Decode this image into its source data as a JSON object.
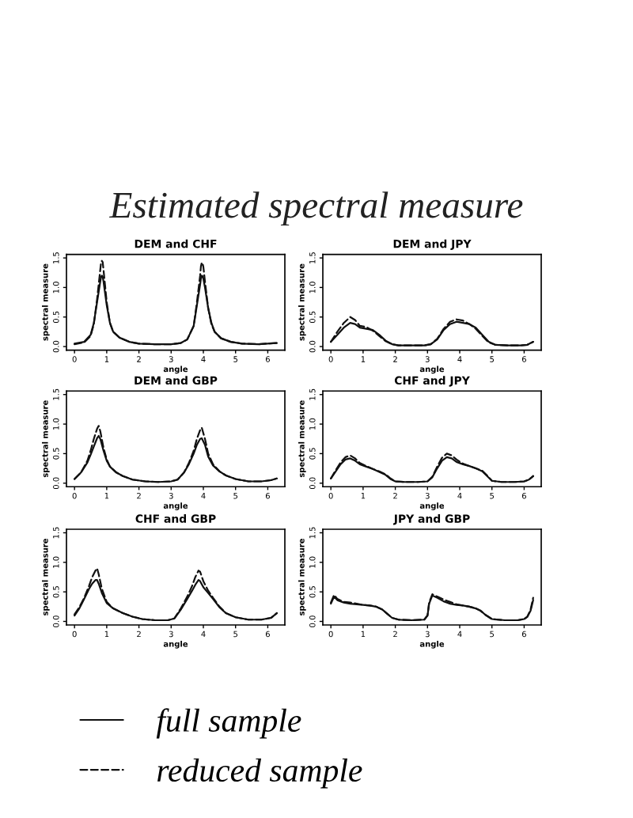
{
  "chart_data": [
    {
      "type": "line",
      "title": "DEM and CHF",
      "xlabel": "angle",
      "ylabel": "spectral measure",
      "annotations": [
        "Estimated spectral measure"
      ],
      "xlim": [
        -0.25,
        6.53
      ],
      "ylim": [
        -0.06,
        1.56
      ],
      "xticks": [
        0,
        1,
        2,
        3,
        4,
        5,
        6
      ],
      "yticks": [
        {
          "value": 0,
          "label": "0.0"
        },
        {
          "value": 0.5,
          "label": "0.5"
        },
        {
          "value": 1,
          "label": "1.0"
        },
        {
          "value": 1.5,
          "label": "1.5"
        }
      ],
      "series": [
        {
          "color": "#111111",
          "line_style": "solid",
          "x": [
            0,
            0.3,
            0.5,
            0.6,
            0.7,
            0.8,
            0.825,
            0.85,
            0.875,
            0.9,
            1.0,
            1.1,
            1.2,
            1.4,
            1.7,
            2.0,
            2.5,
            3.0,
            3.3,
            3.5,
            3.7,
            3.8,
            3.9,
            3.925,
            3.95,
            3.975,
            4.0,
            4.05,
            4.15,
            4.25,
            4.35,
            4.55,
            4.85,
            5.2,
            5.7,
            6.28
          ],
          "values": [
            0.05,
            0.08,
            0.2,
            0.4,
            0.75,
            1.1,
            1.18,
            1.2,
            1.18,
            1.1,
            0.7,
            0.4,
            0.25,
            0.15,
            0.08,
            0.05,
            0.04,
            0.04,
            0.06,
            0.12,
            0.35,
            0.7,
            1.05,
            1.15,
            1.2,
            1.19,
            1.15,
            1.0,
            0.65,
            0.4,
            0.25,
            0.14,
            0.08,
            0.05,
            0.04,
            0.06
          ]
        },
        {
          "color": "#111111",
          "line_style": "dashed",
          "x": [
            0,
            0.3,
            0.5,
            0.6,
            0.7,
            0.8,
            0.825,
            0.85,
            0.875,
            0.9,
            1.0,
            1.1,
            1.2,
            1.4,
            1.7,
            2.0,
            2.5,
            3.0,
            3.3,
            3.5,
            3.7,
            3.8,
            3.9,
            3.925,
            3.95,
            3.975,
            4.0,
            4.05,
            4.15,
            4.25,
            4.35,
            4.55,
            4.85,
            5.2,
            5.7,
            6.28
          ],
          "values": [
            0.04,
            0.07,
            0.18,
            0.38,
            0.8,
            1.3,
            1.43,
            1.45,
            1.43,
            1.3,
            0.75,
            0.4,
            0.25,
            0.15,
            0.08,
            0.05,
            0.04,
            0.04,
            0.06,
            0.12,
            0.35,
            0.75,
            1.2,
            1.36,
            1.42,
            1.41,
            1.35,
            1.1,
            0.65,
            0.38,
            0.25,
            0.14,
            0.08,
            0.05,
            0.04,
            0.06
          ]
        }
      ]
    },
    {
      "type": "line",
      "title": "DEM and JPY",
      "xlabel": "angle",
      "ylabel": "spectral measure",
      "xlim": [
        -0.25,
        6.53
      ],
      "ylim": [
        -0.06,
        1.56
      ],
      "xticks": [
        0,
        1,
        2,
        3,
        4,
        5,
        6
      ],
      "yticks": [
        {
          "value": 0,
          "label": "0.0"
        },
        {
          "value": 0.5,
          "label": "0.5"
        },
        {
          "value": 1,
          "label": "1.0"
        },
        {
          "value": 1.5,
          "label": "1.5"
        }
      ],
      "series": [
        {
          "color": "#111111",
          "line_style": "solid",
          "x": [
            0,
            0.2,
            0.4,
            0.6,
            0.75,
            0.9,
            1.1,
            1.3,
            1.5,
            1.7,
            1.9,
            2.1,
            2.5,
            2.9,
            3.1,
            3.3,
            3.5,
            3.7,
            3.9,
            4.1,
            4.3,
            4.5,
            4.7,
            4.9,
            5.1,
            5.5,
            5.9,
            6.1,
            6.28
          ],
          "values": [
            0.08,
            0.2,
            0.32,
            0.4,
            0.38,
            0.32,
            0.3,
            0.28,
            0.2,
            0.1,
            0.04,
            0.02,
            0.02,
            0.02,
            0.04,
            0.12,
            0.28,
            0.38,
            0.42,
            0.4,
            0.38,
            0.32,
            0.2,
            0.08,
            0.03,
            0.02,
            0.02,
            0.03,
            0.08
          ]
        },
        {
          "color": "#111111",
          "line_style": "dashed",
          "x": [
            0,
            0.2,
            0.4,
            0.6,
            0.75,
            0.9,
            1.1,
            1.3,
            1.5,
            1.7,
            1.9,
            2.1,
            2.5,
            2.9,
            3.1,
            3.3,
            3.5,
            3.7,
            3.9,
            4.1,
            4.3,
            4.5,
            4.7,
            4.9,
            5.1,
            5.5,
            5.9,
            6.1,
            6.28
          ],
          "values": [
            0.08,
            0.25,
            0.4,
            0.5,
            0.45,
            0.35,
            0.33,
            0.27,
            0.18,
            0.09,
            0.04,
            0.02,
            0.02,
            0.02,
            0.04,
            0.13,
            0.3,
            0.42,
            0.46,
            0.44,
            0.38,
            0.3,
            0.18,
            0.07,
            0.03,
            0.02,
            0.02,
            0.03,
            0.08
          ]
        }
      ]
    },
    {
      "type": "line",
      "title": "DEM and GBP",
      "xlabel": "angle",
      "ylabel": "spectral measure",
      "xlim": [
        -0.25,
        6.53
      ],
      "ylim": [
        -0.06,
        1.56
      ],
      "xticks": [
        0,
        1,
        2,
        3,
        4,
        5,
        6
      ],
      "yticks": [
        {
          "value": 0,
          "label": "0.0"
        },
        {
          "value": 0.5,
          "label": "0.5"
        },
        {
          "value": 1,
          "label": "1.0"
        },
        {
          "value": 1.5,
          "label": "1.5"
        }
      ],
      "series": [
        {
          "color": "#111111",
          "line_style": "solid",
          "x": [
            0,
            0.2,
            0.4,
            0.5,
            0.6,
            0.7,
            0.75,
            0.8,
            0.9,
            1.0,
            1.1,
            1.3,
            1.5,
            1.8,
            2.2,
            2.6,
            3.0,
            3.2,
            3.4,
            3.55,
            3.7,
            3.8,
            3.9,
            3.95,
            4.05,
            4.15,
            4.3,
            4.5,
            4.7,
            5.0,
            5.4,
            5.8,
            6.1,
            6.28
          ],
          "values": [
            0.07,
            0.18,
            0.35,
            0.48,
            0.62,
            0.76,
            0.8,
            0.75,
            0.55,
            0.38,
            0.28,
            0.18,
            0.12,
            0.06,
            0.03,
            0.02,
            0.03,
            0.06,
            0.18,
            0.32,
            0.5,
            0.65,
            0.75,
            0.76,
            0.65,
            0.45,
            0.3,
            0.2,
            0.13,
            0.07,
            0.03,
            0.03,
            0.05,
            0.08
          ]
        },
        {
          "color": "#111111",
          "line_style": "dashed",
          "x": [
            0,
            0.2,
            0.4,
            0.5,
            0.6,
            0.7,
            0.75,
            0.8,
            0.9,
            1.0,
            1.1,
            1.3,
            1.5,
            1.8,
            2.2,
            2.6,
            3.0,
            3.2,
            3.4,
            3.55,
            3.7,
            3.8,
            3.9,
            3.95,
            4.05,
            4.15,
            4.3,
            4.5,
            4.7,
            5.0,
            5.4,
            5.8,
            6.1,
            6.28
          ],
          "values": [
            0.07,
            0.18,
            0.38,
            0.55,
            0.75,
            0.92,
            0.97,
            0.88,
            0.6,
            0.4,
            0.28,
            0.18,
            0.12,
            0.06,
            0.03,
            0.02,
            0.03,
            0.06,
            0.18,
            0.34,
            0.55,
            0.75,
            0.9,
            0.94,
            0.75,
            0.5,
            0.32,
            0.2,
            0.13,
            0.07,
            0.03,
            0.03,
            0.05,
            0.08
          ]
        }
      ]
    },
    {
      "type": "line",
      "title": "CHF and JPY",
      "xlabel": "angle",
      "ylabel": "spectral measure",
      "xlim": [
        -0.25,
        6.53
      ],
      "ylim": [
        -0.06,
        1.56
      ],
      "xticks": [
        0,
        1,
        2,
        3,
        4,
        5,
        6
      ],
      "yticks": [
        {
          "value": 0,
          "label": "0.0"
        },
        {
          "value": 0.5,
          "label": "0.5"
        },
        {
          "value": 1,
          "label": "1.0"
        },
        {
          "value": 1.5,
          "label": "1.5"
        }
      ],
      "series": [
        {
          "color": "#111111",
          "line_style": "solid",
          "x": [
            0,
            0.15,
            0.3,
            0.45,
            0.6,
            0.75,
            0.9,
            1.1,
            1.3,
            1.5,
            1.7,
            1.85,
            2.0,
            2.3,
            2.7,
            3.0,
            3.15,
            3.3,
            3.45,
            3.6,
            3.75,
            3.9,
            4.1,
            4.3,
            4.5,
            4.7,
            4.85,
            5.0,
            5.3,
            5.7,
            6.0,
            6.15,
            6.28
          ],
          "values": [
            0.08,
            0.2,
            0.32,
            0.4,
            0.42,
            0.38,
            0.32,
            0.28,
            0.24,
            0.19,
            0.14,
            0.07,
            0.03,
            0.02,
            0.02,
            0.03,
            0.1,
            0.25,
            0.38,
            0.44,
            0.42,
            0.36,
            0.32,
            0.29,
            0.25,
            0.2,
            0.12,
            0.04,
            0.02,
            0.02,
            0.03,
            0.06,
            0.12
          ]
        },
        {
          "color": "#111111",
          "line_style": "dashed",
          "x": [
            0,
            0.15,
            0.3,
            0.45,
            0.6,
            0.75,
            0.9,
            1.1,
            1.3,
            1.5,
            1.7,
            1.85,
            2.0,
            2.3,
            2.7,
            3.0,
            3.15,
            3.3,
            3.45,
            3.6,
            3.75,
            3.9,
            4.1,
            4.3,
            4.5,
            4.7,
            4.85,
            5.0,
            5.3,
            5.7,
            6.0,
            6.15,
            6.28
          ],
          "values": [
            0.08,
            0.22,
            0.35,
            0.44,
            0.47,
            0.42,
            0.34,
            0.29,
            0.24,
            0.2,
            0.15,
            0.08,
            0.03,
            0.02,
            0.02,
            0.03,
            0.11,
            0.28,
            0.43,
            0.5,
            0.47,
            0.4,
            0.33,
            0.29,
            0.25,
            0.21,
            0.13,
            0.04,
            0.02,
            0.02,
            0.03,
            0.06,
            0.12
          ]
        }
      ]
    },
    {
      "type": "line",
      "title": "CHF and GBP",
      "xlabel": "angle",
      "ylabel": "spectral measure",
      "legend": "bottom",
      "xlim": [
        -0.25,
        6.53
      ],
      "ylim": [
        -0.06,
        1.56
      ],
      "xticks": [
        0,
        1,
        2,
        3,
        4,
        5,
        6
      ],
      "yticks": [
        {
          "value": 0,
          "label": "0.0"
        },
        {
          "value": 0.5,
          "label": "0.5"
        },
        {
          "value": 1,
          "label": "1.0"
        },
        {
          "value": 1.5,
          "label": "1.5"
        }
      ],
      "series": [
        {
          "name": "full sample",
          "color": "#111111",
          "line_style": "solid",
          "x": [
            0,
            0.15,
            0.3,
            0.45,
            0.55,
            0.65,
            0.7,
            0.75,
            0.85,
            1.0,
            1.2,
            1.5,
            1.8,
            2.1,
            2.5,
            2.9,
            3.1,
            3.3,
            3.5,
            3.65,
            3.75,
            3.85,
            3.9,
            4.0,
            4.15,
            4.3,
            4.5,
            4.7,
            5.0,
            5.4,
            5.8,
            6.1,
            6.28
          ],
          "values": [
            0.1,
            0.22,
            0.38,
            0.55,
            0.64,
            0.7,
            0.7,
            0.64,
            0.48,
            0.31,
            0.22,
            0.14,
            0.08,
            0.04,
            0.02,
            0.02,
            0.05,
            0.2,
            0.38,
            0.52,
            0.62,
            0.7,
            0.68,
            0.58,
            0.48,
            0.38,
            0.24,
            0.14,
            0.07,
            0.03,
            0.03,
            0.06,
            0.14
          ]
        },
        {
          "name": "reduced sample",
          "color": "#111111",
          "line_style": "dashed",
          "x": [
            0,
            0.15,
            0.3,
            0.45,
            0.55,
            0.65,
            0.7,
            0.75,
            0.85,
            1.0,
            1.2,
            1.5,
            1.8,
            2.1,
            2.5,
            2.9,
            3.1,
            3.3,
            3.5,
            3.65,
            3.75,
            3.85,
            3.9,
            4.0,
            4.15,
            4.3,
            4.5,
            4.7,
            5.0,
            5.4,
            5.8,
            6.1,
            6.28
          ],
          "values": [
            0.12,
            0.24,
            0.4,
            0.6,
            0.75,
            0.86,
            0.9,
            0.8,
            0.55,
            0.33,
            0.22,
            0.14,
            0.08,
            0.04,
            0.02,
            0.02,
            0.05,
            0.22,
            0.42,
            0.6,
            0.75,
            0.86,
            0.84,
            0.68,
            0.52,
            0.4,
            0.25,
            0.14,
            0.07,
            0.03,
            0.03,
            0.06,
            0.14
          ]
        }
      ]
    },
    {
      "type": "line",
      "title": "JPY and GBP",
      "xlabel": "angle",
      "ylabel": "spectral measure",
      "xlim": [
        -0.25,
        6.53
      ],
      "ylim": [
        -0.06,
        1.56
      ],
      "xticks": [
        0,
        1,
        2,
        3,
        4,
        5,
        6
      ],
      "yticks": [
        {
          "value": 0,
          "label": "0.0"
        },
        {
          "value": 0.5,
          "label": "0.5"
        },
        {
          "value": 1,
          "label": "1.0"
        },
        {
          "value": 1.5,
          "label": "1.5"
        }
      ],
      "series": [
        {
          "color": "#111111",
          "line_style": "solid",
          "x": [
            0,
            0.1,
            0.2,
            0.4,
            0.6,
            0.8,
            1.0,
            1.2,
            1.4,
            1.6,
            1.75,
            1.9,
            2.1,
            2.5,
            2.9,
            3.0,
            3.05,
            3.15,
            3.3,
            3.5,
            3.7,
            3.9,
            4.1,
            4.3,
            4.5,
            4.65,
            4.8,
            5.0,
            5.4,
            5.8,
            6.0,
            6.1,
            6.2,
            6.28
          ],
          "values": [
            0.3,
            0.42,
            0.36,
            0.32,
            0.3,
            0.29,
            0.28,
            0.27,
            0.25,
            0.2,
            0.13,
            0.06,
            0.03,
            0.02,
            0.03,
            0.1,
            0.3,
            0.44,
            0.4,
            0.34,
            0.3,
            0.28,
            0.27,
            0.25,
            0.22,
            0.18,
            0.11,
            0.04,
            0.02,
            0.02,
            0.04,
            0.08,
            0.18,
            0.36
          ]
        },
        {
          "color": "#111111",
          "line_style": "dashed",
          "x": [
            0,
            0.1,
            0.2,
            0.4,
            0.6,
            0.8,
            1.0,
            1.2,
            1.4,
            1.6,
            1.75,
            1.9,
            2.1,
            2.5,
            2.9,
            3.0,
            3.05,
            3.15,
            3.3,
            3.5,
            3.7,
            3.9,
            4.1,
            4.3,
            4.5,
            4.65,
            4.8,
            5.0,
            5.4,
            5.8,
            6.0,
            6.1,
            6.2,
            6.28
          ],
          "values": [
            0.32,
            0.45,
            0.38,
            0.33,
            0.32,
            0.3,
            0.28,
            0.27,
            0.25,
            0.2,
            0.13,
            0.06,
            0.03,
            0.02,
            0.03,
            0.1,
            0.32,
            0.46,
            0.42,
            0.37,
            0.33,
            0.29,
            0.27,
            0.25,
            0.22,
            0.18,
            0.11,
            0.04,
            0.02,
            0.02,
            0.04,
            0.08,
            0.2,
            0.4
          ]
        }
      ]
    }
  ]
}
